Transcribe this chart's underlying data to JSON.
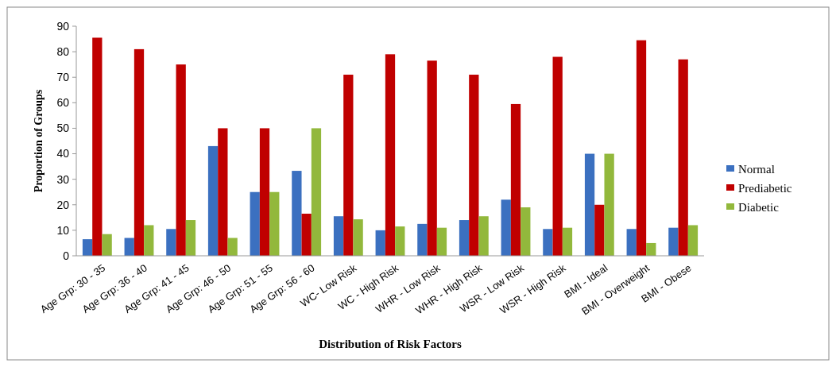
{
  "chart_data": {
    "type": "bar",
    "xlabel": "Distribution of Risk Factors",
    "ylabel": "Proportion of Groups",
    "categories": [
      "Age Grp: 30 - 35",
      "Age Grp: 36 - 40",
      "Age Grp: 41 - 45",
      "Age Grp: 46 - 50",
      "Age Grp: 51 - 55",
      "Age Grp: 56 - 60",
      "WC- Low Risk",
      "WC - High Risk",
      "WHR - Low Risk",
      "WHR - High Risk",
      "WSR - Low Risk",
      "WSR - High Risk",
      "BMI - Ideal",
      "BMI - Overweight",
      "BMI - Obese"
    ],
    "series": [
      {
        "name": "Normal",
        "color": "#3b70c0",
        "values": [
          6.5,
          7,
          10.5,
          43,
          25,
          33.3,
          15.5,
          10,
          12.5,
          14,
          22,
          10.5,
          40,
          10.5,
          11
        ]
      },
      {
        "name": "Prediabetic",
        "color": "#c00000",
        "values": [
          85.5,
          81,
          75,
          50,
          50,
          16.5,
          71,
          79,
          76.5,
          71,
          59.5,
          78,
          20,
          84.5,
          77
        ]
      },
      {
        "name": "Diabetic",
        "color": "#92b83c",
        "values": [
          8.5,
          12,
          14,
          7,
          25,
          50,
          14.3,
          11.5,
          11,
          15.5,
          19,
          11,
          40,
          5,
          12
        ]
      }
    ],
    "ylim": [
      0,
      90
    ],
    "yticks": [
      0,
      10,
      20,
      30,
      40,
      50,
      60,
      70,
      80,
      90
    ],
    "legend": "right"
  }
}
